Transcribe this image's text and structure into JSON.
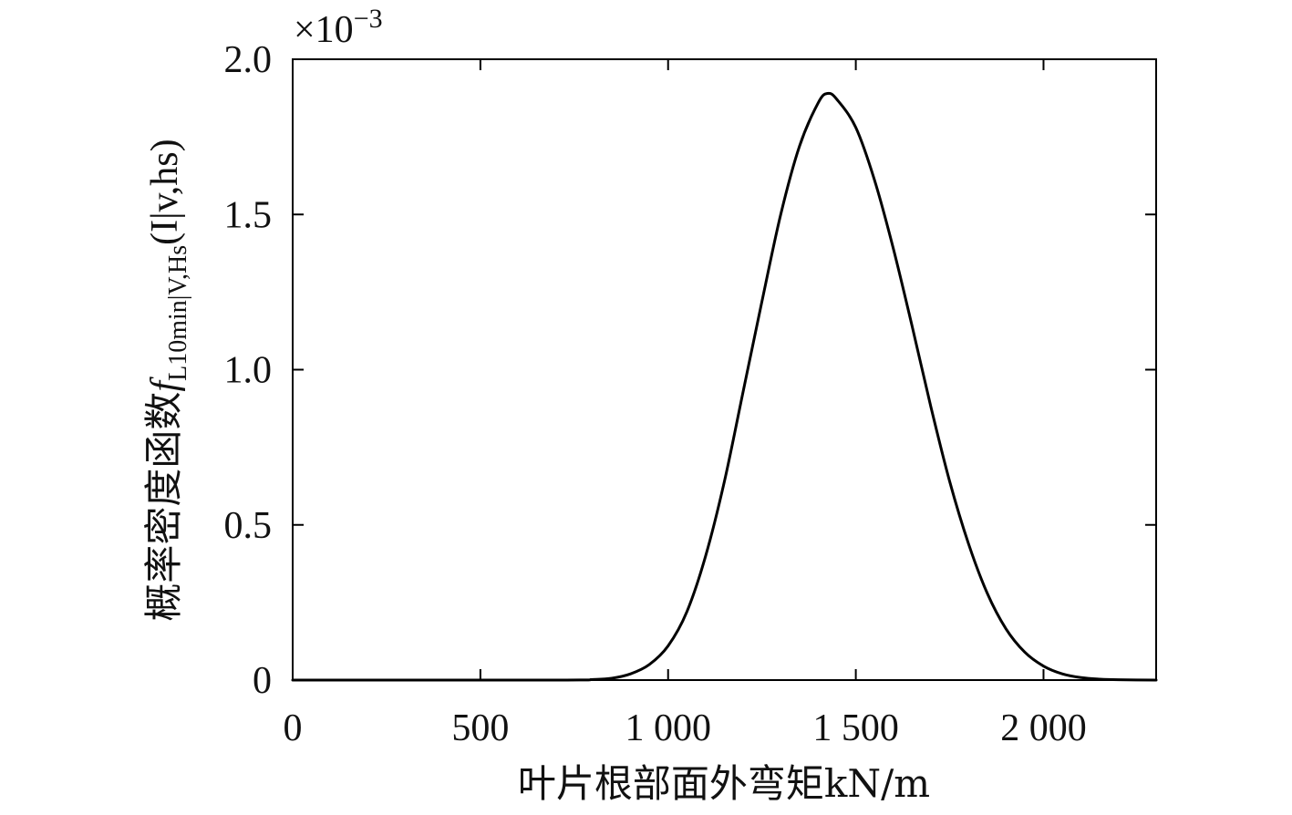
{
  "chart_data": {
    "type": "line",
    "xlabel": "叶片根部面外弯矩kN/m",
    "ylabel": {
      "prefix": "概率密度函数",
      "f": "f",
      "subscript": "L10min|V,Hs",
      "suffix": "(I|v,hs)"
    },
    "y_multiplier": {
      "base": "×10",
      "exponent": "−3"
    },
    "xlim": [
      0,
      2300
    ],
    "ylim": [
      0,
      2.0
    ],
    "x_ticks": [
      0,
      500,
      1000,
      1500,
      2000
    ],
    "x_tick_labels": [
      "0",
      "500",
      "1 000",
      "1 500",
      "2 000"
    ],
    "y_ticks": [
      0,
      0.5,
      1.0,
      1.5,
      2.0
    ],
    "y_tick_labels": [
      "0",
      "0.5",
      "1.0",
      "1.5",
      "2.0"
    ],
    "grid": false,
    "line_color": "#000000",
    "series": [
      {
        "x": [
          0,
          700,
          800,
          850,
          900,
          950,
          1000,
          1050,
          1100,
          1150,
          1200,
          1250,
          1300,
          1350,
          1400,
          1425,
          1450,
          1500,
          1550,
          1600,
          1650,
          1700,
          1750,
          1800,
          1850,
          1900,
          1950,
          2000,
          2050,
          2100,
          2150,
          2200,
          2300
        ],
        "y": [
          0,
          0.0,
          0.002,
          0.006,
          0.02,
          0.05,
          0.11,
          0.22,
          0.4,
          0.64,
          0.93,
          1.22,
          1.5,
          1.72,
          1.86,
          1.89,
          1.87,
          1.78,
          1.61,
          1.39,
          1.14,
          0.88,
          0.64,
          0.44,
          0.28,
          0.165,
          0.09,
          0.045,
          0.02,
          0.008,
          0.003,
          0.001,
          0
        ]
      }
    ]
  }
}
